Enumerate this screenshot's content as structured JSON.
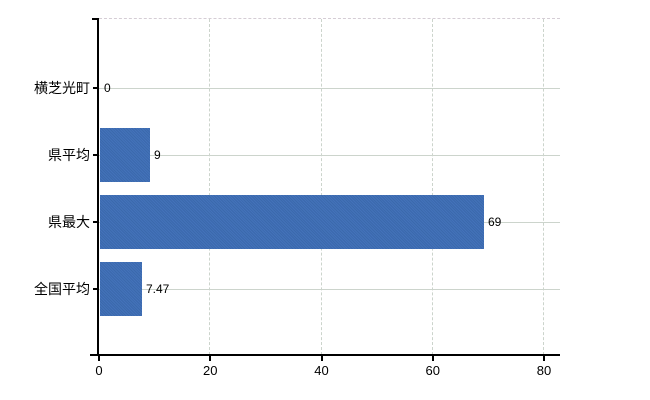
{
  "chart_data": {
    "type": "bar",
    "orientation": "horizontal",
    "title": "",
    "xlabel": "",
    "ylabel": "",
    "categories": [
      "横芝光町",
      "県平均",
      "県最大",
      "全国平均"
    ],
    "values": [
      0,
      9,
      69,
      7.47
    ],
    "value_labels": [
      "0",
      "9",
      "69",
      "7.47"
    ],
    "x_ticks": [
      0,
      20,
      40,
      60,
      80
    ],
    "x_tick_labels": [
      "0",
      "20",
      "40",
      "60",
      "80"
    ],
    "xlim": [
      0,
      80
    ],
    "grid": true,
    "legend": false,
    "colors": {
      "bar": "#3c6cb0",
      "gridline": "#ccd4cc",
      "top_border": "#d5cdd5",
      "axis": "#000000",
      "text": "#000000",
      "background": "#ffffff"
    }
  }
}
